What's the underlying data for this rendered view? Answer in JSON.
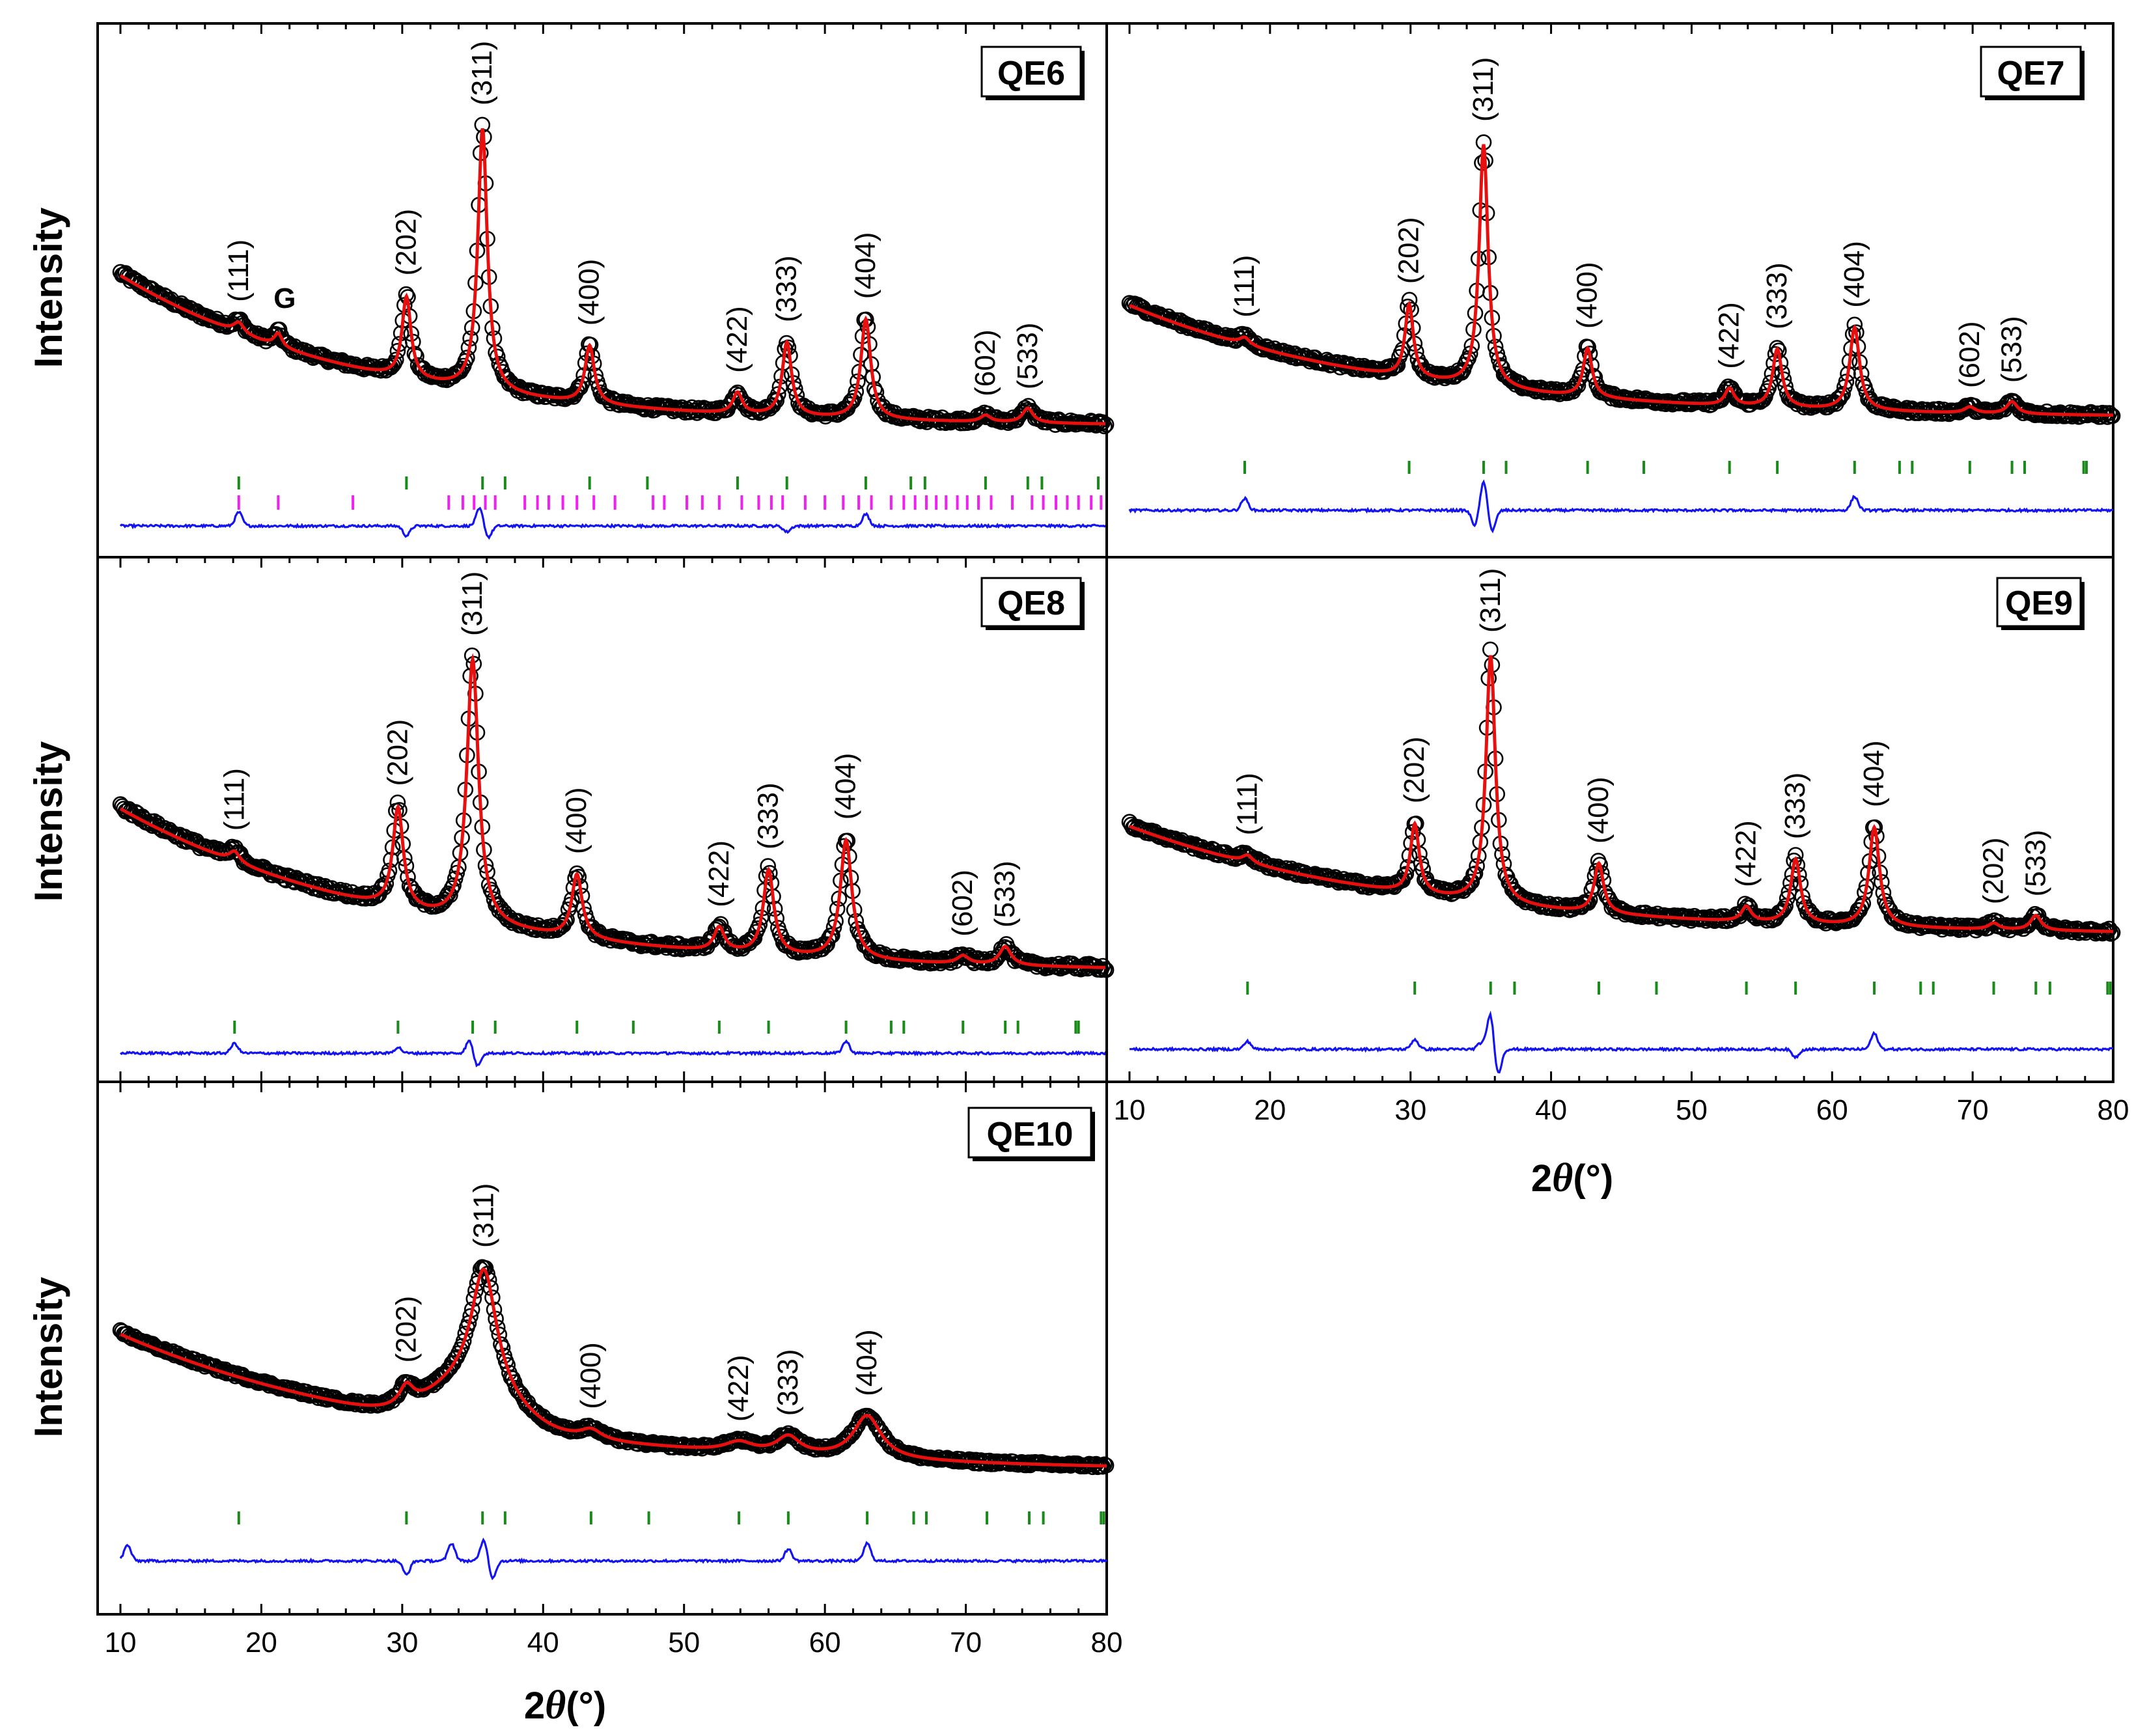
{
  "figure": {
    "x_axis_title_prefix": "2",
    "x_axis_title_symbol": "θ",
    "x_axis_title_unit": "(°)",
    "y_axis_title": "Intensity"
  },
  "colors": {
    "observed": "#000000",
    "calculated": "#e8100e",
    "difference": "#1414f0",
    "bragg_main": "#1a8a1a",
    "bragg_secondary": "#f020f0"
  },
  "chart_data": [
    {
      "type": "line",
      "id": "QE6",
      "panel_label": "QE6",
      "xlabel": "2θ (°)",
      "ylabel": "Intensity",
      "xlim": [
        10,
        80
      ],
      "ylim": [
        0,
        1
      ],
      "series_names": [
        "observed (open circles)",
        "calculated",
        "difference",
        "Bragg positions"
      ],
      "background": {
        "start": 0.72,
        "decay": 5.5,
        "floor": 0.0
      },
      "peaks": [
        {
          "hkl": "(111)",
          "pos": 18.4,
          "height": 0.04,
          "width": 0.45
        },
        {
          "hkl": "G",
          "pos": 21.2,
          "height": 0.05,
          "width": 0.35
        },
        {
          "hkl": "(202)",
          "pos": 30.3,
          "height": 0.31,
          "width": 0.38
        },
        {
          "hkl": "(311)",
          "pos": 35.7,
          "height": 1.0,
          "width": 0.4
        },
        {
          "hkl": "(400)",
          "pos": 43.3,
          "height": 0.22,
          "width": 0.4
        },
        {
          "hkl": "(422)",
          "pos": 53.8,
          "height": 0.08,
          "width": 0.4
        },
        {
          "hkl": "(333)",
          "pos": 57.3,
          "height": 0.28,
          "width": 0.4
        },
        {
          "hkl": "(404)",
          "pos": 62.9,
          "height": 0.38,
          "width": 0.42
        },
        {
          "hkl": "(602)",
          "pos": 71.4,
          "height": 0.025,
          "width": 0.45
        },
        {
          "hkl": "(533)",
          "pos": 74.4,
          "height": 0.055,
          "width": 0.45
        }
      ],
      "labeled_peaks": [
        "(111)",
        "G",
        "(202)",
        "(311)",
        "(400)",
        "(422)",
        "(333)",
        "(404)",
        "(602)",
        "(533)"
      ],
      "bragg_main": [
        18.4,
        30.3,
        35.7,
        37.3,
        43.3,
        47.4,
        53.8,
        57.3,
        62.9,
        66.1,
        67.1,
        71.4,
        74.4,
        75.4,
        79.4
      ],
      "bragg_secondary": [
        18.4,
        21.2,
        26.5,
        33.3,
        34.3,
        35.1,
        35.9,
        36.6,
        38.7,
        39.6,
        40.4,
        41.4,
        42.4,
        43.6,
        45.1,
        47.8,
        48.6,
        50.2,
        51.3,
        52.5,
        54.1,
        55.3,
        56.2,
        57.0,
        58.6,
        60.0,
        61.3,
        62.4,
        63.3,
        64.7,
        65.6,
        66.4,
        67.2,
        67.9,
        68.6,
        69.4,
        70.1,
        70.9,
        71.8,
        73.3,
        74.7,
        75.5,
        76.4,
        77.2,
        78.0,
        78.9,
        79.6
      ],
      "difference_features": [
        {
          "pos": 18.4,
          "amp": 0.35
        },
        {
          "pos": 30.3,
          "amp": -0.25
        },
        {
          "pos": 35.5,
          "amp": 0.45
        },
        {
          "pos": 36.1,
          "amp": -0.3
        },
        {
          "pos": 57.3,
          "amp": -0.15
        },
        {
          "pos": 62.9,
          "amp": 0.3
        }
      ]
    },
    {
      "type": "line",
      "id": "QE7",
      "panel_label": "QE7",
      "xlabel": "2θ (°)",
      "ylabel": "Intensity",
      "xlim": [
        10,
        80
      ],
      "ylim": [
        0,
        1
      ],
      "series_names": [
        "observed (open circles)",
        "calculated",
        "difference",
        "Bragg positions"
      ],
      "background": {
        "start": 0.58,
        "decay": 6.0,
        "floor": 0.0
      },
      "peaks": [
        {
          "hkl": "(111)",
          "pos": 18.2,
          "height": 0.03,
          "width": 0.45
        },
        {
          "hkl": "(202)",
          "pos": 29.9,
          "height": 0.3,
          "width": 0.36
        },
        {
          "hkl": "(311)",
          "pos": 35.2,
          "height": 1.0,
          "width": 0.38
        },
        {
          "hkl": "(400)",
          "pos": 42.6,
          "height": 0.2,
          "width": 0.38
        },
        {
          "hkl": "(422)",
          "pos": 52.7,
          "height": 0.07,
          "width": 0.4
        },
        {
          "hkl": "(333)",
          "pos": 56.1,
          "height": 0.24,
          "width": 0.4
        },
        {
          "hkl": "(404)",
          "pos": 61.6,
          "height": 0.34,
          "width": 0.42
        },
        {
          "hkl": "(602)",
          "pos": 69.8,
          "height": 0.025,
          "width": 0.45
        },
        {
          "hkl": "(533)",
          "pos": 72.8,
          "height": 0.05,
          "width": 0.45
        }
      ],
      "labeled_peaks": [
        "(111)",
        "(202)",
        "(311)",
        "(400)",
        "(422)",
        "(333)",
        "(404)",
        "(602)",
        "(533)"
      ],
      "bragg_main": [
        18.2,
        29.9,
        35.2,
        36.8,
        42.6,
        46.6,
        52.7,
        56.1,
        61.6,
        64.8,
        65.7,
        69.8,
        72.8,
        73.7,
        77.9,
        78.1
      ],
      "bragg_secondary": [],
      "difference_features": [
        {
          "pos": 18.2,
          "amp": 0.3
        },
        {
          "pos": 34.6,
          "amp": -0.4
        },
        {
          "pos": 35.2,
          "amp": 0.75
        },
        {
          "pos": 35.8,
          "amp": -0.55
        },
        {
          "pos": 61.6,
          "amp": 0.35
        }
      ]
    },
    {
      "type": "line",
      "id": "QE8",
      "panel_label": "QE8",
      "xlabel": "2θ (°)",
      "ylabel": "Intensity",
      "xlim": [
        10,
        80
      ],
      "ylim": [
        0,
        1
      ],
      "series_names": [
        "observed (open circles)",
        "calculated",
        "difference",
        "Bragg positions"
      ],
      "background": {
        "start": 0.78,
        "decay": 6.5,
        "floor": 0.0
      },
      "peaks": [
        {
          "hkl": "(111)",
          "pos": 18.1,
          "height": 0.04,
          "width": 0.45
        },
        {
          "hkl": "(202)",
          "pos": 29.7,
          "height": 0.38,
          "width": 0.45
        },
        {
          "hkl": "(311)",
          "pos": 35.0,
          "height": 1.0,
          "width": 0.5
        },
        {
          "hkl": "(400)",
          "pos": 42.4,
          "height": 0.24,
          "width": 0.45
        },
        {
          "hkl": "(422)",
          "pos": 52.5,
          "height": 0.09,
          "width": 0.45
        },
        {
          "hkl": "(333)",
          "pos": 56.0,
          "height": 0.32,
          "width": 0.45
        },
        {
          "hkl": "(404)",
          "pos": 61.5,
          "height": 0.45,
          "width": 0.5
        },
        {
          "hkl": "(602)",
          "pos": 69.8,
          "height": 0.03,
          "width": 0.5
        },
        {
          "hkl": "(533)",
          "pos": 72.8,
          "height": 0.07,
          "width": 0.5
        }
      ],
      "labeled_peaks": [
        "(111)",
        "(202)",
        "(311)",
        "(400)",
        "(422)",
        "(333)",
        "(404)",
        "(602)",
        "(533)"
      ],
      "bragg_main": [
        18.1,
        29.7,
        35.0,
        36.6,
        42.4,
        46.4,
        52.5,
        56.0,
        61.5,
        64.7,
        65.6,
        69.8,
        72.8,
        73.7,
        77.8,
        78.0
      ],
      "bragg_secondary": [],
      "difference_features": [
        {
          "pos": 18.1,
          "amp": 0.25
        },
        {
          "pos": 29.7,
          "amp": 0.15
        },
        {
          "pos": 34.8,
          "amp": 0.35
        },
        {
          "pos": 35.3,
          "amp": -0.35
        },
        {
          "pos": 61.5,
          "amp": 0.3
        }
      ]
    },
    {
      "type": "line",
      "id": "QE9",
      "panel_label": "QE9",
      "xlabel": "2θ (°)",
      "ylabel": "Intensity",
      "xlim": [
        10,
        80
      ],
      "ylim": [
        0,
        1
      ],
      "series_names": [
        "observed (open circles)",
        "calculated",
        "difference",
        "Bragg positions"
      ],
      "background": {
        "start": 0.55,
        "decay": 6.5,
        "floor": 0.0
      },
      "peaks": [
        {
          "hkl": "(111)",
          "pos": 18.4,
          "height": 0.03,
          "width": 0.45
        },
        {
          "hkl": "(202)",
          "pos": 30.3,
          "height": 0.28,
          "width": 0.38
        },
        {
          "hkl": "(311)",
          "pos": 35.7,
          "height": 1.0,
          "width": 0.4
        },
        {
          "hkl": "(400)",
          "pos": 43.4,
          "height": 0.2,
          "width": 0.4
        },
        {
          "hkl": "(422)",
          "pos": 53.9,
          "height": 0.06,
          "width": 0.42
        },
        {
          "hkl": "(333)",
          "pos": 57.4,
          "height": 0.26,
          "width": 0.42
        },
        {
          "hkl": "(404)",
          "pos": 63.0,
          "height": 0.4,
          "width": 0.45
        },
        {
          "hkl": "(202)",
          "pos": 71.5,
          "height": 0.025,
          "width": 0.45
        },
        {
          "hkl": "(533)",
          "pos": 74.5,
          "height": 0.06,
          "width": 0.45
        }
      ],
      "labeled_peaks": [
        "(111)",
        "(202)",
        "(311)",
        "(400)",
        "(422)",
        "(333)",
        "(404)",
        "(202)",
        "(533)"
      ],
      "bragg_main": [
        18.4,
        30.3,
        35.7,
        37.4,
        43.4,
        47.5,
        53.9,
        57.4,
        63.0,
        66.3,
        67.2,
        71.5,
        74.5,
        75.5,
        79.6,
        79.8
      ],
      "bragg_secondary": [],
      "difference_features": [
        {
          "pos": 18.4,
          "amp": 0.2
        },
        {
          "pos": 30.3,
          "amp": 0.25
        },
        {
          "pos": 35.0,
          "amp": 0.15
        },
        {
          "pos": 35.7,
          "amp": 0.95
        },
        {
          "pos": 36.2,
          "amp": -0.7
        },
        {
          "pos": 57.4,
          "amp": -0.2
        },
        {
          "pos": 63.0,
          "amp": 0.4
        }
      ]
    },
    {
      "type": "line",
      "id": "QE10",
      "panel_label": "QE10",
      "xlabel": "2θ (°)",
      "ylabel": "Intensity",
      "xlim": [
        10,
        80
      ],
      "ylim": [
        0,
        1
      ],
      "series_names": [
        "observed (open circles)",
        "calculated",
        "difference",
        "Bragg positions"
      ],
      "background": {
        "start": 0.88,
        "decay": 7.0,
        "floor": 0.0
      },
      "peaks": [
        {
          "hkl": "(202)",
          "pos": 30.3,
          "height": 0.1,
          "width": 0.6
        },
        {
          "hkl": "(311)",
          "pos": 35.8,
          "height": 0.62,
          "width": 1.1
        },
        {
          "hkl": "(400)",
          "pos": 43.4,
          "height": 0.05,
          "width": 0.9
        },
        {
          "hkl": "(422)",
          "pos": 53.9,
          "height": 0.05,
          "width": 1.2
        },
        {
          "hkl": "(333)",
          "pos": 57.4,
          "height": 0.09,
          "width": 1.0
        },
        {
          "hkl": "(404)",
          "pos": 63.0,
          "height": 0.22,
          "width": 1.2
        }
      ],
      "hump": {
        "pos": 35.0,
        "height": 0.2,
        "width": 4.0
      },
      "labeled_peaks": [
        "(202)",
        "(311)",
        "(400)",
        "(422)",
        "(333)",
        "(404)"
      ],
      "bragg_main": [
        18.4,
        30.3,
        35.7,
        37.3,
        43.4,
        47.5,
        53.9,
        57.4,
        63.0,
        66.3,
        67.2,
        71.5,
        74.5,
        75.5,
        79.6,
        79.8
      ],
      "bragg_secondary": [],
      "difference_features": [
        {
          "pos": 10.5,
          "amp": 0.4
        },
        {
          "pos": 30.3,
          "amp": -0.35
        },
        {
          "pos": 33.5,
          "amp": 0.45
        },
        {
          "pos": 35.8,
          "amp": 0.55
        },
        {
          "pos": 36.4,
          "amp": -0.45
        },
        {
          "pos": 57.4,
          "amp": 0.3
        },
        {
          "pos": 63.0,
          "amp": 0.45
        }
      ]
    }
  ],
  "x_ticks": {
    "major": [
      10,
      20,
      30,
      40,
      50,
      60,
      70,
      80
    ],
    "labels": [
      "10",
      "20",
      "30",
      "40",
      "50",
      "60",
      "70",
      "80"
    ]
  }
}
